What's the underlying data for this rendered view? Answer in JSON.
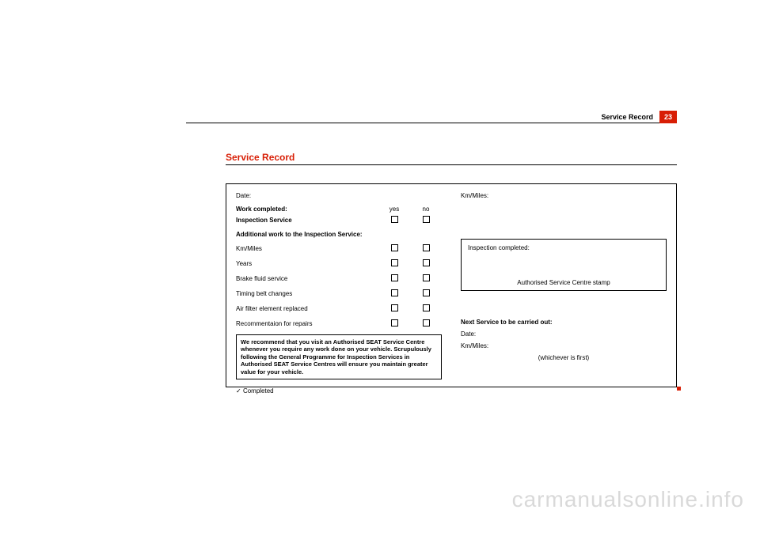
{
  "header": {
    "section_label": "Service Record",
    "page_number": "23"
  },
  "heading": "Service Record",
  "left": {
    "date_label": "Date:",
    "work_completed": "Work completed:",
    "col_yes": "yes",
    "col_no": "no",
    "inspection_service": "Inspection Service",
    "additional_work": "Additional work to the Inspection Service:",
    "items": {
      "km_miles": "Km/Miles",
      "years": "Years",
      "brake_fluid": "Brake fluid service",
      "timing_belt": "Timing belt changes",
      "air_filter": "Air filter element replaced",
      "recommendation": "Recommentaion for repairs"
    },
    "note": "We recommend that you visit an Authorised SEAT Service Centre whenever you require any work done on your vehicle. Scrupulously following the General Programme for Inspection Services in Authorised SEAT Service Centres will ensure you maintain greater value for your vehicle.",
    "completed": "Completed"
  },
  "right": {
    "km_miles_label": "Km/Miles:",
    "inspection_completed": "Inspection completed:",
    "stamp_text": "Authorised Service Centre stamp",
    "next_service": "Next Service to be carried out:",
    "next_date": "Date:",
    "next_km": "Km/Miles:",
    "whichever": "(whichever is first)"
  },
  "watermark": "carmanualsonline.info",
  "colors": {
    "accent": "#d81e05",
    "text": "#000000",
    "watermark": "#d9d9d9",
    "background": "#ffffff"
  }
}
